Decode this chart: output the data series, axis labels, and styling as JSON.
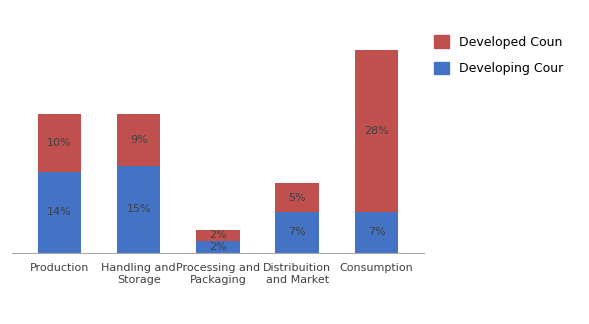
{
  "categories": [
    "Production",
    "Handling and\nStorage",
    "Processing and\nPackaging",
    "Distribuition\nand Market",
    "Consumption"
  ],
  "developing": [
    14,
    15,
    2,
    7,
    7
  ],
  "developed": [
    10,
    9,
    2,
    5,
    28
  ],
  "developing_color": "#4472C4",
  "developed_color": "#C0504D",
  "developing_label": "Developing Cour",
  "developed_label": "Developed Coun",
  "legend_fontsize": 9,
  "bar_width": 0.55,
  "label_fontsize": 8,
  "tick_fontsize": 8,
  "ylim": [
    0,
    42
  ],
  "background_color": "#ffffff",
  "label_color": "#404040"
}
